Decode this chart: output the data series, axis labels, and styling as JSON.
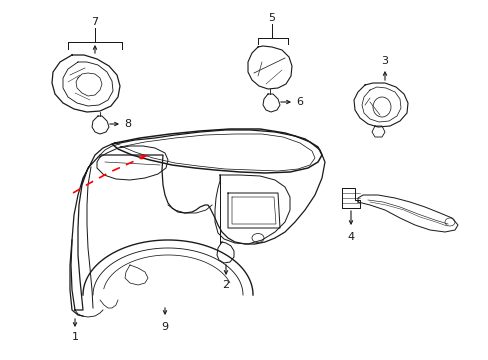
{
  "background_color": "#ffffff",
  "line_color": "#1a1a1a",
  "red_dashed_color": "#ff0000",
  "fig_width": 4.89,
  "fig_height": 3.6,
  "dpi": 100
}
